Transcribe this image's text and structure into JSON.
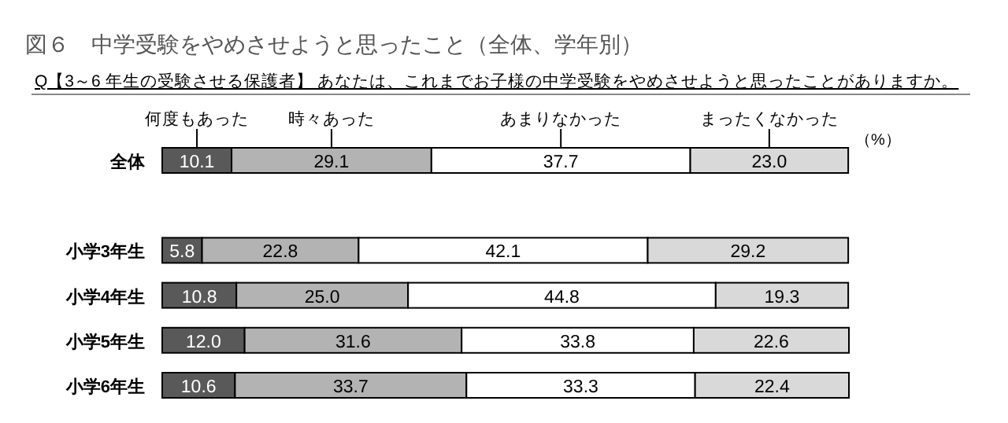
{
  "chart_data": {
    "type": "bar",
    "orientation": "horizontal",
    "stacked": true,
    "title": "図６　中学受験をやめさせようと思ったこと（全体、学年別）",
    "subtitle": "Q【3～6 年生の受験させる保護者】 あなたは、これまでお子様の中学受験をやめさせようと思ったことがありますか。",
    "categories": [
      "全体",
      null,
      "小学3年生",
      "小学4年生",
      "小学5年生",
      "小学6年生"
    ],
    "series": [
      {
        "name": "何度もあった",
        "color": "#595959",
        "values": [
          10.1,
          null,
          5.8,
          10.8,
          12.0,
          10.6
        ],
        "value_labels": [
          "10.1",
          null,
          "5.8",
          "10.8",
          "12.0",
          "10.6"
        ]
      },
      {
        "name": "時々あった",
        "color": "#b3b3b3",
        "values": [
          29.1,
          null,
          22.8,
          25.0,
          31.6,
          33.7
        ],
        "value_labels": [
          "29.1",
          null,
          "22.8",
          "25.0",
          "31.6",
          "33.7"
        ]
      },
      {
        "name": "あまりなかった",
        "color": "#ffffff",
        "values": [
          37.7,
          null,
          42.1,
          44.8,
          33.8,
          33.3
        ],
        "value_labels": [
          "37.7",
          null,
          "42.1",
          "44.8",
          "33.8",
          "33.3"
        ]
      },
      {
        "name": "まったくなかった",
        "color": "#d9d9d9",
        "values": [
          23.0,
          null,
          29.2,
          19.3,
          22.6,
          22.4
        ],
        "value_labels": [
          "23.0",
          null,
          "29.2",
          "19.3",
          "22.6",
          "22.4"
        ]
      }
    ],
    "xlim": [
      0,
      100
    ],
    "legend": "top",
    "annotations": [
      "（%）"
    ]
  }
}
